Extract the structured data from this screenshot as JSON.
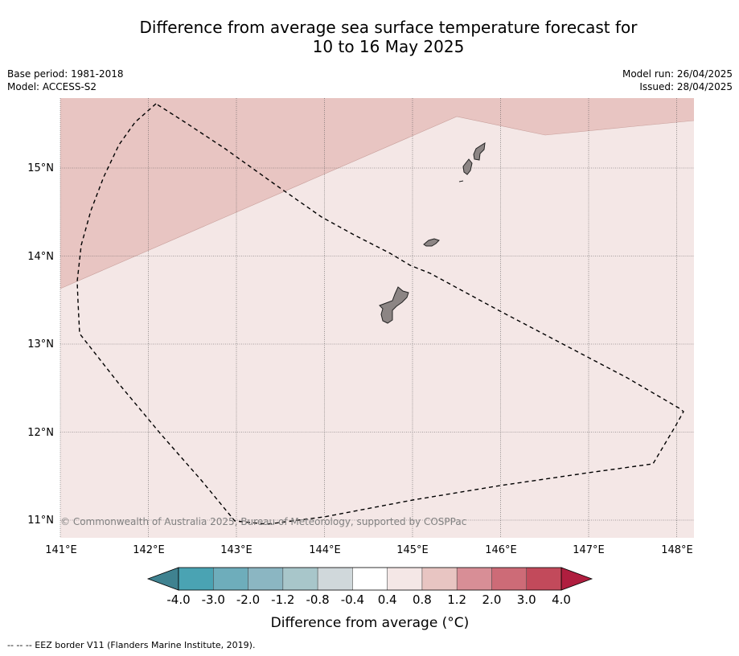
{
  "title_line1": "Difference from average sea surface temperature forecast for",
  "title_line2": "10 to 16 May 2025",
  "base_period": "Base period: 1981-2018",
  "model": "Model: ACCESS-S2",
  "model_run": "Model run: 26/04/2025",
  "issued": "Issued: 28/04/2025",
  "copyright": "© Commonwealth of Australia 2025, Bureau of Meteorology, supported by COSPPac",
  "lon_labels": [
    "141°E",
    "142°E",
    "143°E",
    "144°E",
    "145°E",
    "146°E",
    "147°E",
    "148°E"
  ],
  "lat_labels": [
    "15°N",
    "14°N",
    "13°N",
    "12°N",
    "11°N"
  ],
  "colorbar": {
    "ticks": [
      "-4.0",
      "-3.0",
      "-2.0",
      "-1.2",
      "-0.8",
      "-0.4",
      "0.4",
      "0.8",
      "1.2",
      "2.0",
      "3.0",
      "4.0"
    ],
    "colors": [
      "#4aa3b3",
      "#6eadbb",
      "#8bb6c2",
      "#a8c6ca",
      "#d0d8db",
      "#ffffff",
      "#f4e7e6",
      "#e8c5c2",
      "#d88e96",
      "#cd6b77",
      "#c24a5b"
    ],
    "low_extend_color": "#3f8290",
    "high_extend_color": "#b01e3f",
    "label": "Difference from average (°C)"
  },
  "field_colors": {
    "band_0.4_0.8": "#f4e7e6",
    "band_0.8_1.2": "#e8c5c2"
  },
  "footnote": "-- -- -- EEZ border V11 (Flanders Marine Institute, 2019)."
}
